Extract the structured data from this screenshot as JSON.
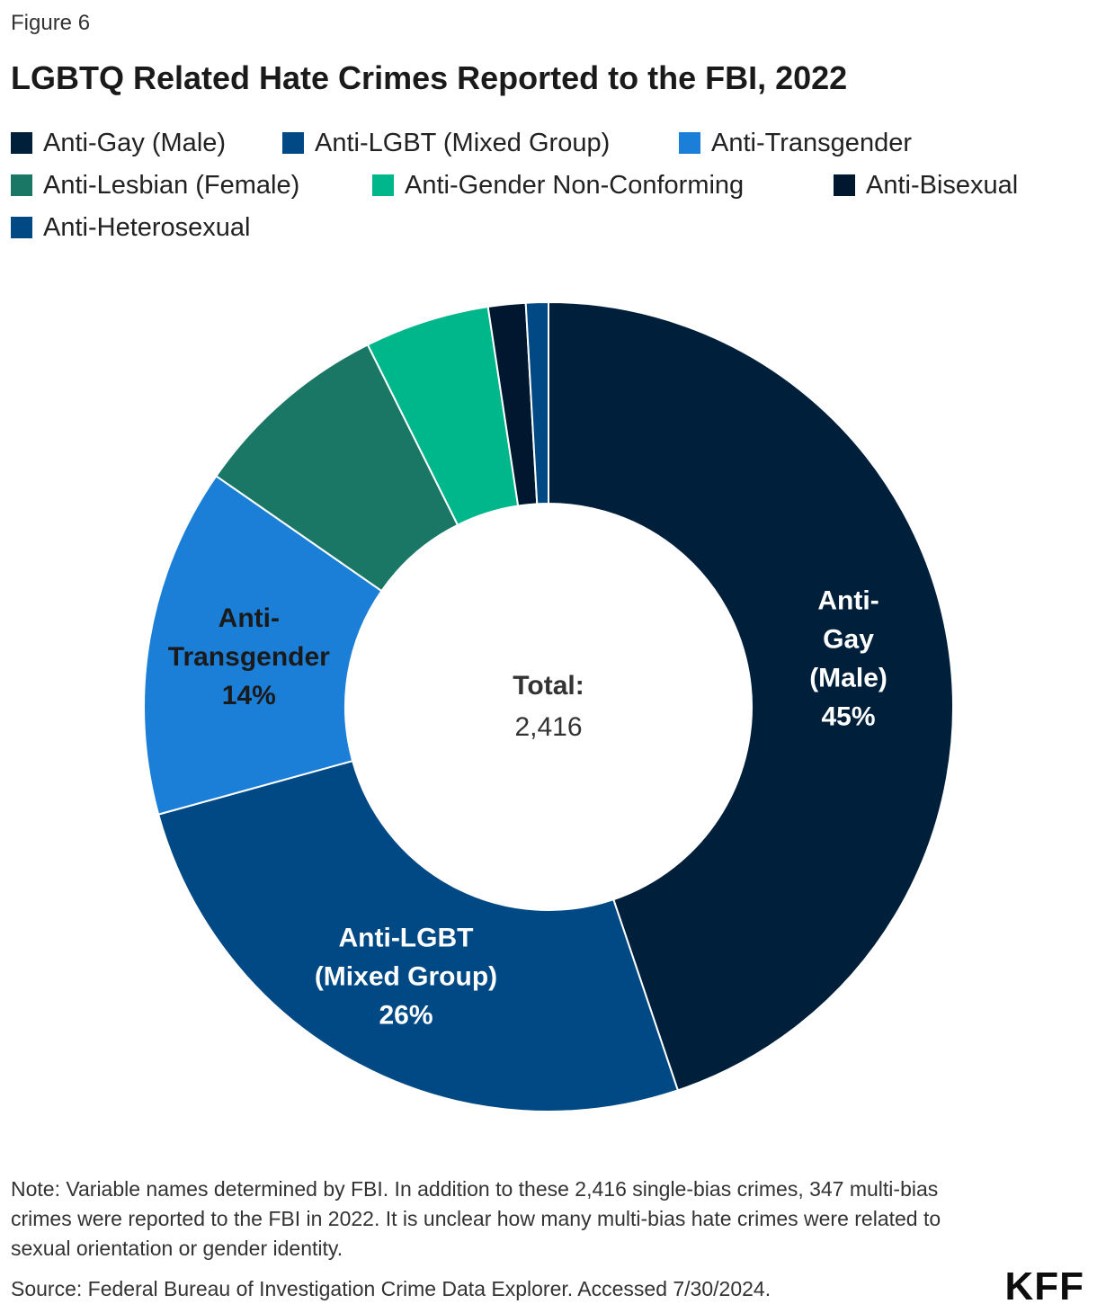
{
  "figure_label": "Figure 6",
  "title": "LGBTQ Related Hate Crimes Reported to the FBI, 2022",
  "chart_data": {
    "type": "pie",
    "style": "donut",
    "title": "LGBTQ Related Hate Crimes Reported to the FBI, 2022",
    "legend_position": "top",
    "center_label": "Total:",
    "center_value": "2,416",
    "categories": [
      "Anti-Gay (Male)",
      "Anti-LGBT (Mixed Group)",
      "Anti-Transgender",
      "Anti-Lesbian (Female)",
      "Anti-Gender Non-Conforming",
      "Anti-Bisexual",
      "Anti-Heterosexual"
    ],
    "values": [
      45,
      26,
      14,
      8,
      5,
      1.5,
      0.9
    ],
    "colors": [
      "#001f3a",
      "#004985",
      "#1c7fd7",
      "#1b7765",
      "#00b68b",
      "#00182f",
      "#004985"
    ],
    "data_labels": [
      [
        "Anti-",
        "Gay",
        "(Male)",
        "45%"
      ],
      [
        "Anti-LGBT",
        "(Mixed Group)",
        "26%"
      ],
      [
        "Anti-",
        "Transgender",
        "14%"
      ],
      [],
      [],
      [],
      []
    ],
    "data_label_colors": [
      "#ffffff",
      "#ffffff",
      "#1a1a1a",
      "",
      "",
      "",
      ""
    ]
  },
  "footer": {
    "note": "Note: Variable names determined by FBI. In addition to these 2,416 single-bias crimes, 347 multi-bias crimes were reported to the FBI in 2022. It is unclear how many multi-bias hate crimes were related to sexual orientation or gender identity.",
    "source": "Source: Federal Bureau of Investigation Crime Data Explorer. Accessed 7/30/2024.",
    "logo_text": "KFF"
  }
}
